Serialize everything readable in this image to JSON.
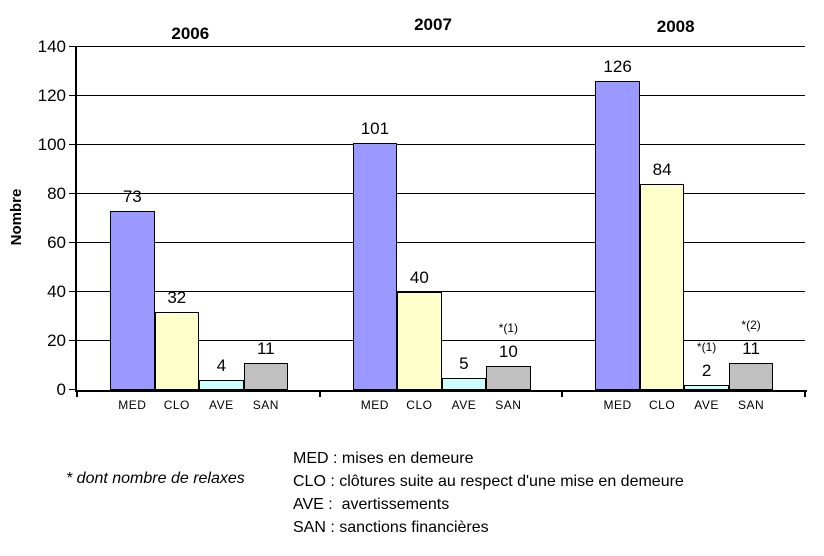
{
  "chart_data": {
    "type": "bar",
    "title": "",
    "ylabel": "Nombre",
    "xlabel": "",
    "ylim": [
      0,
      140
    ],
    "yticks": [
      0,
      20,
      40,
      60,
      80,
      100,
      120,
      140
    ],
    "grid": true,
    "legend_position": "bottom",
    "categories": [
      "MED",
      "CLO",
      "AVE",
      "SAN"
    ],
    "series_colors": {
      "MED": "#9999FF",
      "CLO": "#FFFFCC",
      "AVE": "#CCFFFF",
      "SAN": "#C0C0C0"
    },
    "groups": [
      {
        "year": "2006",
        "values": [
          {
            "category": "MED",
            "value": 73
          },
          {
            "category": "CLO",
            "value": 32
          },
          {
            "category": "AVE",
            "value": 4
          },
          {
            "category": "SAN",
            "value": 11
          }
        ]
      },
      {
        "year": "2007",
        "values": [
          {
            "category": "MED",
            "value": 101
          },
          {
            "category": "CLO",
            "value": 40
          },
          {
            "category": "AVE",
            "value": 5
          },
          {
            "category": "SAN",
            "value": 10,
            "annotation": "*(1)"
          }
        ]
      },
      {
        "year": "2008",
        "values": [
          {
            "category": "MED",
            "value": 126
          },
          {
            "category": "CLO",
            "value": 84
          },
          {
            "category": "AVE",
            "value": 2,
            "annotation": "*(1)"
          },
          {
            "category": "SAN",
            "value": 11,
            "annotation": "*(2)"
          }
        ]
      }
    ]
  },
  "footnote": "* dont nombre de relaxes",
  "legend_lines": [
    "MED : mises en demeure",
    "CLO : clôtures suite au respect d'une mise en demeure",
    "AVE :  avertissements",
    "SAN : sanctions financières"
  ]
}
